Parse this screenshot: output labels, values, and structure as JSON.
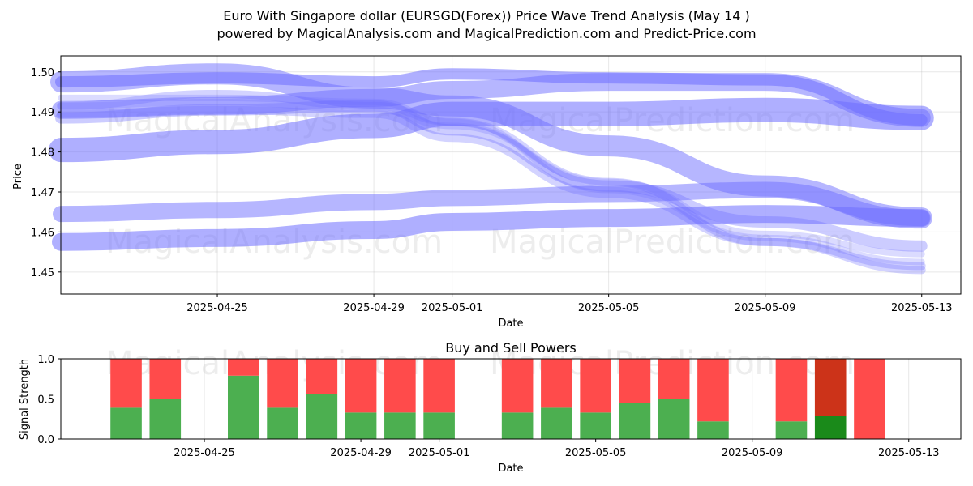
{
  "title": {
    "line1": "Euro With Singapore dollar (EURSGD(Forex)) Price Wave Trend Analysis (May 14 )",
    "line2": "powered by MagicalAnalysis.com and MagicalPrediction.com and Predict-Price.com"
  },
  "watermarks": [
    "MagicalAnalysis.com",
    "MagicalPrediction.com"
  ],
  "colors": {
    "wave": "#6e6eff",
    "buy": "#4caf50",
    "sell": "#ff4b4b",
    "buy_strong": "#1a8a1a",
    "sell_strong": "#cc3319"
  },
  "chart_data": [
    {
      "type": "line",
      "subtype": "wave-band",
      "title": "",
      "xlabel": "Date",
      "ylabel": "Price",
      "xlim": [
        "2025-04-21",
        "2025-05-14"
      ],
      "ylim": [
        1.4445,
        1.504
      ],
      "yticks": [
        1.45,
        1.46,
        1.47,
        1.48,
        1.49,
        1.5
      ],
      "xticks": [
        "2025-04-25",
        "2025-04-29",
        "2025-05-01",
        "2025-05-05",
        "2025-05-09",
        "2025-05-13"
      ],
      "grid": true,
      "x": [
        "2025-04-21",
        "2025-04-25",
        "2025-04-29",
        "2025-05-01",
        "2025-05-05",
        "2025-05-09",
        "2025-05-13"
      ],
      "series": [
        {
          "values": [
            1.4975,
            1.4985,
            1.4975,
            1.4995,
            1.4985,
            1.498,
            1.488
          ]
        },
        {
          "values": [
            1.4975,
            1.4995,
            1.4935,
            1.4915,
            1.4815,
            1.4715,
            1.4635
          ]
        },
        {
          "values": [
            1.4905,
            1.4915,
            1.4935,
            1.4955,
            1.4975,
            1.4975,
            1.4885
          ]
        },
        {
          "values": [
            1.4885,
            1.4905,
            1.4915,
            1.4855,
            1.4715,
            1.4625,
            1.4565
          ]
        },
        {
          "values": [
            1.4915,
            1.4945,
            1.4915,
            1.4875,
            1.4725,
            1.4575,
            1.4515
          ]
        },
        {
          "values": [
            1.4895,
            1.4905,
            1.4895,
            1.4835,
            1.4695,
            1.4575,
            1.4505
          ]
        },
        {
          "values": [
            1.4805,
            1.4825,
            1.4865,
            1.4895,
            1.4895,
            1.4905,
            1.4885
          ]
        },
        {
          "values": [
            1.4645,
            1.4655,
            1.4675,
            1.4685,
            1.4695,
            1.4705,
            1.4635
          ]
        },
        {
          "values": [
            1.4575,
            1.4585,
            1.4605,
            1.4625,
            1.4635,
            1.4645,
            1.4635
          ]
        },
        {
          "values": [
            1.4915,
            1.4925,
            1.4905,
            1.4865,
            1.4725,
            1.4595,
            1.4545
          ]
        },
        {
          "values": [
            1.4935,
            1.4935,
            1.4925,
            1.4875,
            1.4705,
            1.4585,
            1.4525
          ]
        }
      ],
      "widths": [
        14,
        26,
        22,
        14,
        10,
        10,
        30,
        20,
        22,
        8,
        8
      ],
      "opacities": [
        0.55,
        0.5,
        0.5,
        0.35,
        0.3,
        0.3,
        0.55,
        0.5,
        0.55,
        0.25,
        0.25
      ]
    },
    {
      "type": "bar",
      "subtype": "stacked",
      "title": "Buy and Sell Powers",
      "xlabel": "Date",
      "ylabel": "Signal Strength",
      "ylim": [
        0,
        1.0
      ],
      "yticks": [
        0.0,
        0.5,
        1.0
      ],
      "xticks": [
        "2025-04-25",
        "2025-04-29",
        "2025-05-01",
        "2025-05-05",
        "2025-05-09",
        "2025-05-13"
      ],
      "grid": true,
      "categories": [
        "2025-04-23",
        "2025-04-24",
        "2025-04-26",
        "2025-04-27",
        "2025-04-28",
        "2025-04-29",
        "2025-04-30",
        "2025-05-01",
        "2025-05-03",
        "2025-05-04",
        "2025-05-05",
        "2025-05-06",
        "2025-05-07",
        "2025-05-08",
        "2025-05-10",
        "2025-05-11",
        "2025-05-12"
      ],
      "series": [
        {
          "name": "Buy",
          "values": [
            0.39,
            0.5,
            0.79,
            0.39,
            0.56,
            0.33,
            0.33,
            0.33,
            0.33,
            0.39,
            0.33,
            0.45,
            0.5,
            0.22,
            0.22,
            0.29,
            0.0
          ]
        },
        {
          "name": "Sell",
          "values": [
            0.61,
            0.5,
            0.21,
            0.61,
            0.44,
            0.67,
            0.67,
            0.67,
            0.67,
            0.61,
            0.67,
            0.55,
            0.5,
            0.78,
            0.78,
            0.71,
            1.0
          ]
        }
      ],
      "highlight_index": 15
    }
  ]
}
